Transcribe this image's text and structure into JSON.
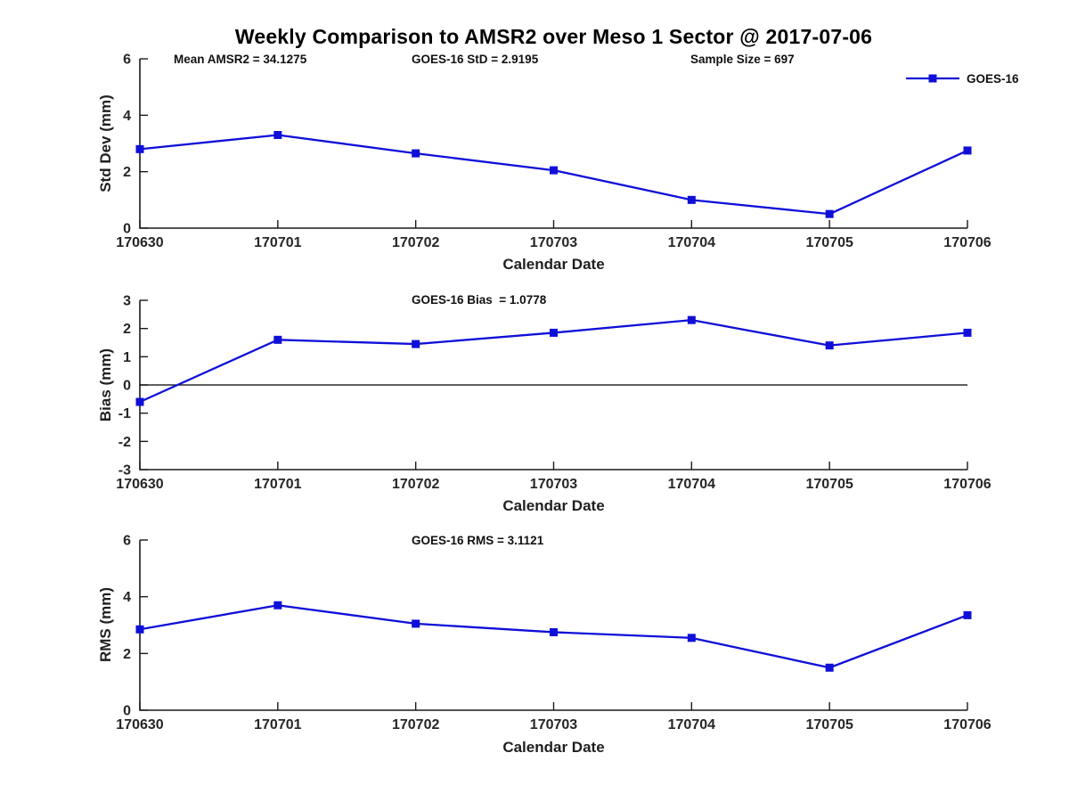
{
  "figure": {
    "title": "Weekly Comparison to AMSR2 over Meso 1 Sector @ 2017-07-06",
    "annotations": {
      "mean_amsr2": "Mean AMSR2 = 34.1275",
      "goes16_std": "GOES-16 StD = 2.9195",
      "sample_size": "Sample Size = 697"
    },
    "legend": {
      "label": "GOES-16"
    },
    "colors": {
      "line": "#0f0fd8",
      "axis": "#1a1a1a",
      "tick_text": "#262626",
      "zero_line": "#000000"
    }
  },
  "chart_data": [
    {
      "type": "line",
      "name": "std-dev",
      "title": "",
      "ylabel": "Std Dev (mm)",
      "xlabel": "Calendar Date",
      "ylim": [
        0,
        6
      ],
      "yticks": [
        0,
        2,
        4,
        6
      ],
      "categories": [
        "170630",
        "170701",
        "170702",
        "170703",
        "170704",
        "170705",
        "170706"
      ],
      "series": [
        {
          "name": "GOES-16",
          "values": [
            2.8,
            3.3,
            2.65,
            2.05,
            1.0,
            0.5,
            2.75
          ]
        }
      ],
      "zero_line": false,
      "legend_position": "top-right",
      "grid": false
    },
    {
      "type": "line",
      "name": "bias",
      "title": "GOES-16 Bias  = 1.0778",
      "ylabel": "Bias (mm)",
      "xlabel": "Calendar Date",
      "ylim": [
        -3,
        3
      ],
      "yticks": [
        -3,
        -2,
        -1,
        0,
        1,
        2,
        3
      ],
      "categories": [
        "170630",
        "170701",
        "170702",
        "170703",
        "170704",
        "170705",
        "170706"
      ],
      "series": [
        {
          "name": "GOES-16",
          "values": [
            -0.6,
            1.6,
            1.45,
            1.85,
            2.3,
            1.4,
            1.85
          ]
        }
      ],
      "zero_line": true,
      "grid": false
    },
    {
      "type": "line",
      "name": "rms",
      "title": "GOES-16 RMS = 3.1121",
      "ylabel": "RMS (mm)",
      "xlabel": "Calendar Date",
      "ylim": [
        0,
        6
      ],
      "yticks": [
        0,
        2,
        4,
        6
      ],
      "categories": [
        "170630",
        "170701",
        "170702",
        "170703",
        "170704",
        "170705",
        "170706"
      ],
      "series": [
        {
          "name": "GOES-16",
          "values": [
            2.85,
            3.7,
            3.05,
            2.75,
            2.55,
            1.5,
            3.35
          ]
        }
      ],
      "zero_line": false,
      "grid": false
    }
  ]
}
